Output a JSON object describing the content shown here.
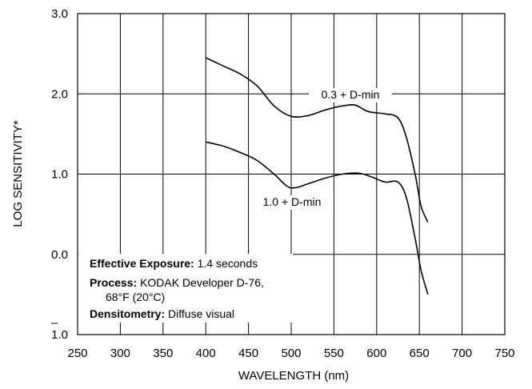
{
  "chart_data": {
    "type": "line",
    "xlabel": "WAVELENGTH (nm)",
    "ylabel": "LOG SENSITIVITY*",
    "xlim": [
      250,
      750
    ],
    "ylim": [
      -1,
      3
    ],
    "grid": true,
    "x_ticks": [
      "250",
      "300",
      "350",
      "400",
      "450",
      "500",
      "550",
      "600",
      "650",
      "700",
      "750"
    ],
    "y_ticks": [
      {
        "value": 3,
        "label": "3.0",
        "bar": ""
      },
      {
        "value": 2,
        "label": "2.0",
        "bar": ""
      },
      {
        "value": 1,
        "label": "1.0",
        "bar": ""
      },
      {
        "value": 0,
        "label": "0.0",
        "bar": ""
      },
      {
        "value": -1,
        "label": "1.0",
        "bar": "–"
      }
    ],
    "series": [
      {
        "name": "0.3 + D-min",
        "x": [
          400,
          420,
          440,
          460,
          480,
          500,
          520,
          540,
          560,
          575,
          590,
          610,
          625,
          635,
          645,
          652,
          660
        ],
        "y": [
          2.45,
          2.35,
          2.25,
          2.1,
          1.85,
          1.72,
          1.73,
          1.8,
          1.85,
          1.86,
          1.78,
          1.75,
          1.7,
          1.45,
          1.0,
          0.6,
          0.4
        ]
      },
      {
        "name": "1.0 + D-min",
        "x": [
          400,
          420,
          440,
          460,
          480,
          495,
          505,
          520,
          540,
          560,
          580,
          595,
          610,
          625,
          635,
          645,
          652,
          660
        ],
        "y": [
          1.4,
          1.35,
          1.27,
          1.17,
          1.0,
          0.85,
          0.83,
          0.88,
          0.95,
          1.0,
          1.01,
          0.96,
          0.9,
          0.9,
          0.7,
          0.2,
          -0.2,
          -0.5
        ]
      }
    ],
    "annotation": {
      "lines": [
        {
          "bold": "Effective Exposure:",
          "text": " 1.4 seconds"
        },
        {
          "bold": "Process:",
          "text": " KODAK Developer D-76,"
        },
        {
          "bold": "",
          "text": "68°F (20°C)"
        },
        {
          "bold": "Densitometry:",
          "text": " Diffuse visual"
        }
      ]
    }
  }
}
